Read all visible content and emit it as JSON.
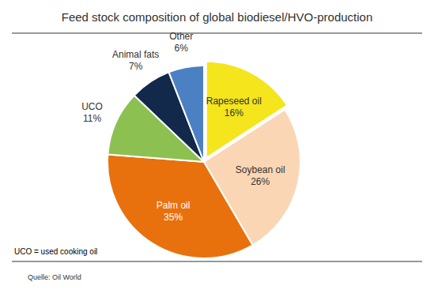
{
  "chart_data": {
    "type": "pie",
    "title": "Feed stock composition of global biodiesel/HVO-production",
    "categories": [
      "Rapeseed oil",
      "Soybean oil",
      "Palm oil",
      "UCO",
      "Animal fats",
      "Other"
    ],
    "values": [
      16,
      26,
      35,
      11,
      7,
      6
    ],
    "value_labels": [
      "16%",
      "26%",
      "35%",
      "11%",
      "7%",
      "6%"
    ],
    "colors": [
      "#f4e51c",
      "#fbd6b4",
      "#e8710d",
      "#8cc152",
      "#13294b",
      "#4b80c3"
    ],
    "data_labels": true,
    "annotations": [
      "UCO = used cooking oil"
    ],
    "source": "Quelle: Oil World"
  }
}
